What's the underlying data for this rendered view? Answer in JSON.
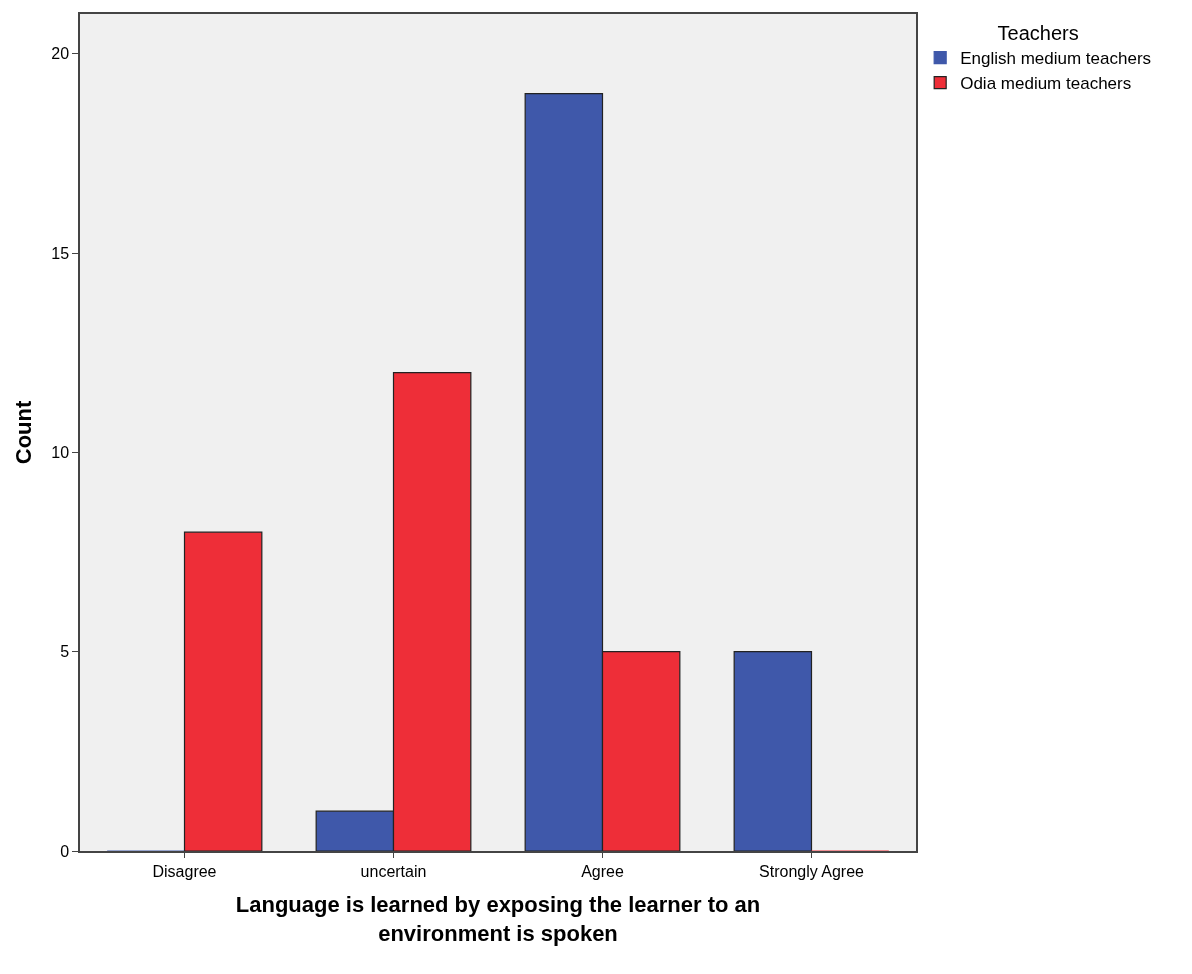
{
  "chart_data": {
    "type": "bar",
    "xlabel": "Language is learned by exposing the learner to an\nenvironment is spoken",
    "ylabel": "Count",
    "legend_title": "Teachers",
    "categories": [
      "Disagree",
      "uncertain",
      "Agree",
      "Strongly Agree"
    ],
    "series": [
      {
        "name": "English medium teachers",
        "color": "#3f58aa",
        "values": [
          0,
          1,
          19,
          5
        ]
      },
      {
        "name": "Odia medium teachers",
        "color": "#ee2e38",
        "values": [
          8,
          12,
          5,
          0
        ]
      }
    ],
    "ylim": [
      0,
      21
    ],
    "yticks": [
      0,
      5,
      10,
      15,
      20
    ],
    "grid": false,
    "legend": "top right"
  }
}
